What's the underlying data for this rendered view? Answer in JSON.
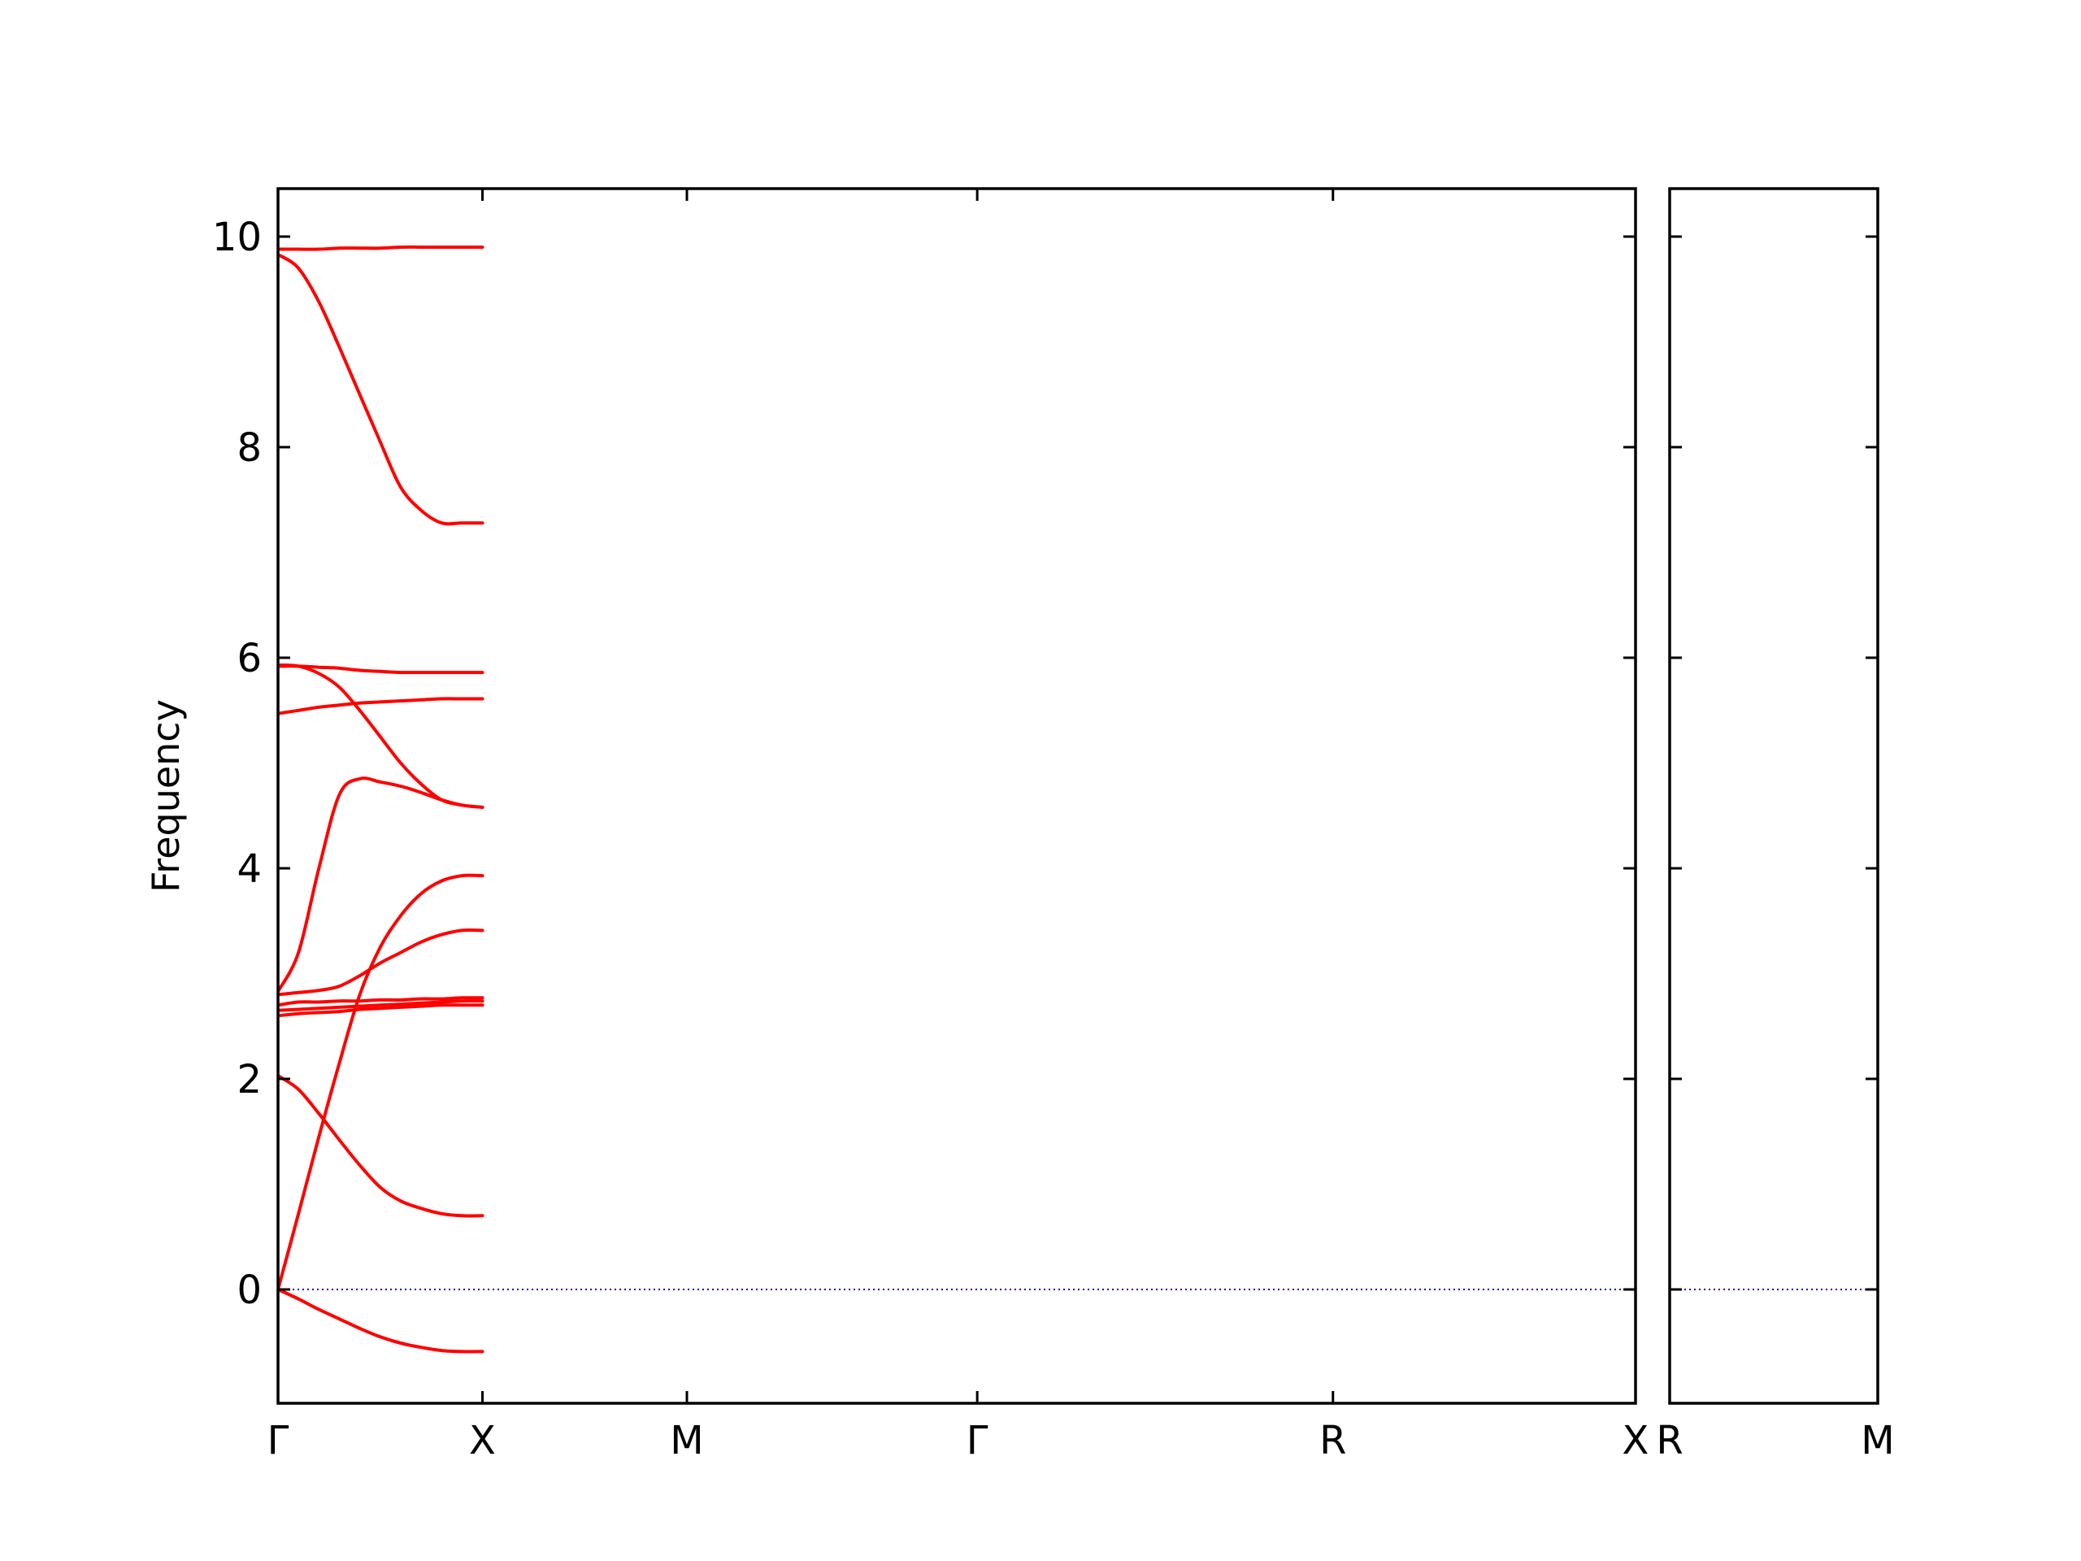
{
  "chart_data": {
    "type": "line",
    "title": "",
    "ylabel": "Frequency",
    "xlabel": "",
    "ylim": [
      -1.1,
      10.45
    ],
    "yticks": [
      0,
      2,
      4,
      6,
      8,
      10
    ],
    "series_color": "#ff0000",
    "zero_line_color": "#0000cc",
    "panels": [
      {
        "id": "left",
        "xlim": [
          0,
          3.32
        ],
        "ticks": [
          {
            "x": 0.0,
            "label": "Γ"
          },
          {
            "x": 0.5,
            "label": "X"
          },
          {
            "x": 1.0,
            "label": "M"
          },
          {
            "x": 1.71,
            "label": "Γ"
          },
          {
            "x": 2.58,
            "label": "R"
          },
          {
            "x": 3.32,
            "label": "X"
          }
        ],
        "segments": [
          {
            "x": [
              0.0,
              0.05,
              0.1,
              0.15,
              0.2,
              0.25,
              0.3,
              0.35,
              0.4,
              0.45,
              0.5
            ],
            "bands": [
              [
                0.0,
                -0.09,
                -0.19,
                -0.28,
                -0.37,
                -0.45,
                -0.51,
                -0.55,
                -0.58,
                -0.59,
                -0.59
              ],
              [
                0.0,
                0.72,
                1.45,
                2.15,
                2.8,
                3.25,
                3.55,
                3.76,
                3.88,
                3.93,
                3.93
              ],
              [
                2.03,
                1.9,
                1.67,
                1.42,
                1.18,
                0.97,
                0.84,
                0.77,
                0.72,
                0.7,
                0.7
              ],
              [
                2.6,
                2.62,
                2.63,
                2.64,
                2.66,
                2.67,
                2.68,
                2.69,
                2.7,
                2.7,
                2.7
              ],
              [
                2.65,
                2.66,
                2.67,
                2.68,
                2.69,
                2.7,
                2.71,
                2.72,
                2.73,
                2.74,
                2.74
              ],
              [
                2.7,
                2.73,
                2.73,
                2.74,
                2.74,
                2.75,
                2.75,
                2.76,
                2.76,
                2.77,
                2.77
              ],
              [
                2.8,
                2.82,
                2.84,
                2.88,
                2.98,
                3.1,
                3.2,
                3.3,
                3.37,
                3.41,
                3.41
              ],
              [
                2.83,
                3.2,
                4.0,
                4.7,
                4.85,
                4.82,
                4.78,
                4.72,
                4.65,
                4.6,
                4.58
              ],
              [
                5.47,
                5.5,
                5.53,
                5.55,
                5.57,
                5.58,
                5.59,
                5.6,
                5.61,
                5.61,
                5.61
              ],
              [
                5.93,
                5.92,
                5.85,
                5.72,
                5.5,
                5.25,
                5.0,
                4.8,
                4.65,
                4.6,
                4.58
              ],
              [
                5.92,
                5.92,
                5.91,
                5.9,
                5.88,
                5.87,
                5.86,
                5.86,
                5.86,
                5.86,
                5.86
              ],
              [
                9.83,
                9.7,
                9.38,
                8.95,
                8.5,
                8.05,
                7.62,
                7.4,
                7.28,
                7.28,
                7.28
              ],
              [
                9.88,
                9.88,
                9.88,
                9.89,
                9.89,
                9.89,
                9.9,
                9.9,
                9.9,
                9.9,
                9.9
              ]
            ]
          }
        ]
      },
      {
        "id": "right",
        "xlim": [
          0,
          0.5
        ],
        "ticks": [
          {
            "x": 0.0,
            "label": "R"
          },
          {
            "x": 0.5,
            "label": "M"
          }
        ]
      }
    ]
  }
}
